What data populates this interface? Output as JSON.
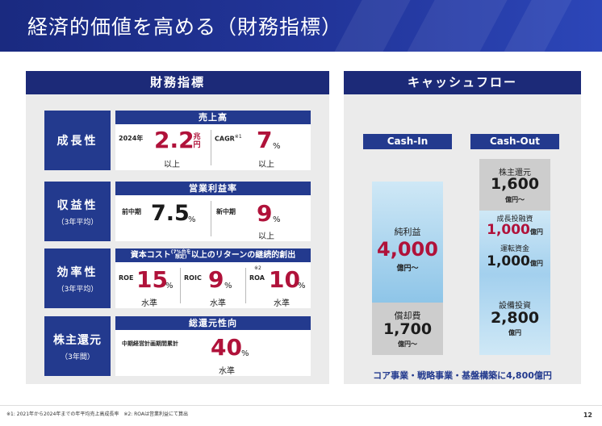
{
  "title": "経済的価値を高める（財務指標）",
  "left_panel": {
    "header": "財務指標",
    "rows": [
      {
        "label": "成長性",
        "sublabel": "",
        "heading": "売上高",
        "cells": [
          {
            "label": "2024年",
            "value": "2.2",
            "unit_stack": [
              "兆",
              "円"
            ],
            "caption": "以上"
          },
          {
            "label": "CAGR",
            "note": "※1",
            "value": "7",
            "unit": "%",
            "caption": "以上"
          }
        ]
      },
      {
        "label": "収益性",
        "sublabel": "（3年平均）",
        "heading": "営業利益率",
        "cells": [
          {
            "label": "前中期",
            "value": "7.5",
            "unit": "%",
            "caption": ""
          },
          {
            "label": "新中期",
            "value": "9",
            "unit": "%",
            "caption": "以上"
          }
        ]
      },
      {
        "label": "効率性",
        "sublabel": "（3年平均）",
        "heading_pre": "資本コスト",
        "heading_note": [
          "7%台を",
          "想定"
        ],
        "heading_post": "以上のリターンの継続的創出",
        "cells": [
          {
            "label": "ROE",
            "value": "15",
            "unit": "%",
            "caption": "水準"
          },
          {
            "label": "ROIC",
            "value": "9",
            "unit": "%",
            "caption": "水準"
          },
          {
            "label": "ROA",
            "note": "※2",
            "value": "10",
            "unit": "%",
            "caption": "水準"
          }
        ]
      },
      {
        "label": "株主還元",
        "sublabel": "（3年間）",
        "heading": "総還元性向",
        "cells": [
          {
            "label": "中期経営計画期間累計",
            "value": "40",
            "unit": "%",
            "caption": "水準"
          }
        ]
      }
    ]
  },
  "right_panel": {
    "header": "キャッシュフロー",
    "cash_in": {
      "label": "Cash-In",
      "net_income": {
        "label": "純利益",
        "value": "4,000",
        "unit": "億円～"
      },
      "depreciation": {
        "label": "償却費",
        "value": "1,700",
        "unit": "億円～"
      }
    },
    "cash_out": {
      "label": "Cash-Out",
      "shareholder_return": {
        "label": "株主還元",
        "value": "1,600",
        "unit": "億円～"
      },
      "growth_investment": {
        "label": "成長投融資",
        "value": "1,000",
        "unit": "億円"
      },
      "working_capital": {
        "label": "運転資金",
        "value": "1,000",
        "unit": "億円"
      },
      "capex": {
        "label": "設備投資",
        "value": "2,800",
        "unit": "億円"
      }
    },
    "footer": "コア事業・戦略事業・基盤構築に4,800億円"
  },
  "footnote": "※1: 2021年から2024年までの年平均売上高成長率　※2: ROAは営業利益にて算出",
  "page_number": "12",
  "colors": {
    "navy": "#233a8e",
    "accent_red": "#b0123a",
    "light_blue": "#cfe8f6",
    "grey": "#cdcdcd"
  }
}
